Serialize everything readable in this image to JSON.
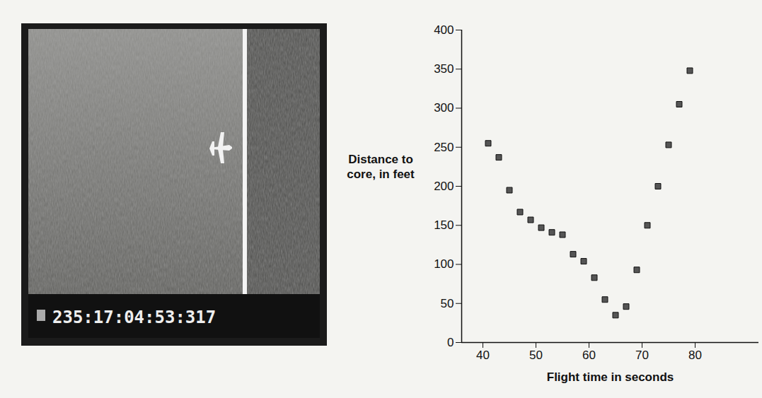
{
  "chart_data": {
    "type": "scatter",
    "xlabel": "Flight time in seconds",
    "ylabel": "Distance to core, in feet",
    "x": [
      41,
      43,
      45,
      47,
      49,
      51,
      53,
      55,
      57,
      59,
      61,
      63,
      65,
      67,
      69,
      71,
      73,
      75,
      77,
      79
    ],
    "values": [
      255,
      237,
      195,
      167,
      157,
      147,
      141,
      138,
      113,
      104,
      83,
      55,
      35,
      46,
      93,
      150,
      200,
      253,
      305,
      348
    ],
    "xlim": [
      36,
      92
    ],
    "xticks": [
      40,
      50,
      60,
      70,
      80
    ],
    "ylim": [
      0,
      400
    ],
    "yticks": [
      0,
      50,
      100,
      150,
      200,
      250,
      300,
      350,
      400
    ],
    "color": "#555555",
    "marker": "square",
    "grid": false
  },
  "photo": {
    "timestamp": "235:17:04:53:317"
  }
}
